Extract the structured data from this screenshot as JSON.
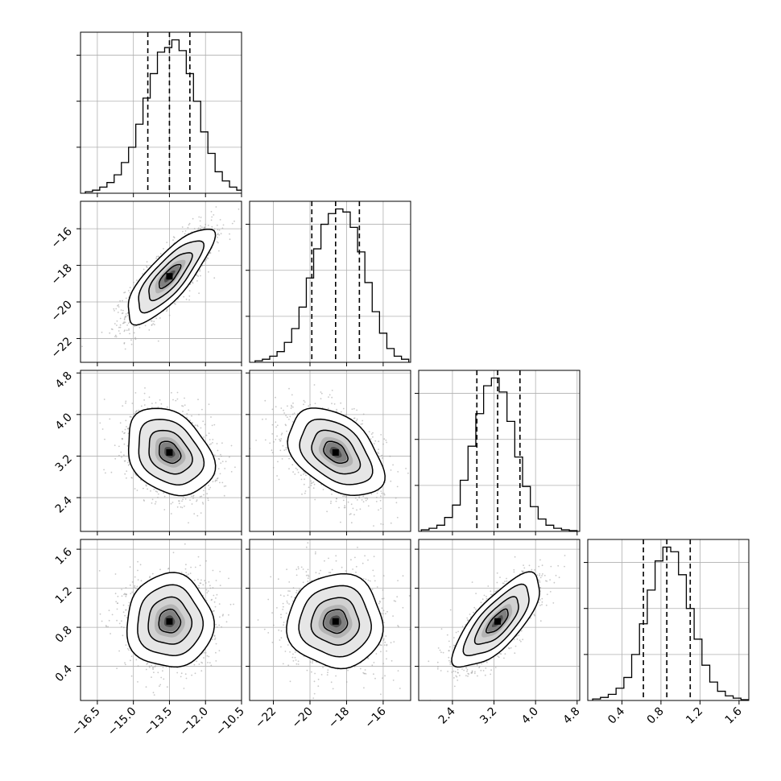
{
  "chart_data": {
    "type": "corner",
    "parameters": [
      {
        "range": [
          -17.2,
          -10.5
        ],
        "ticks": [
          "−16.5",
          "−15.0",
          "−13.5",
          "−12.0",
          "−10.5"
        ],
        "tick_values": [
          -16.5,
          -15.0,
          -13.5,
          -12.0,
          -10.5
        ],
        "quantiles": [
          -14.4,
          -13.5,
          -12.65
        ],
        "histogram": {
          "bin_start": -17.0,
          "bin_width": 0.3,
          "counts": [
            0.01,
            0.02,
            0.04,
            0.07,
            0.12,
            0.2,
            0.3,
            0.45,
            0.62,
            0.78,
            0.92,
            0.95,
            1.0,
            0.93,
            0.78,
            0.6,
            0.4,
            0.26,
            0.14,
            0.08,
            0.04,
            0.02,
            0.01
          ]
        }
      },
      {
        "range": [
          -23.3,
          -14.5
        ],
        "ticks": [
          "−22",
          "−20",
          "−18",
          "−16"
        ],
        "tick_values": [
          -22,
          -20,
          -18,
          -16
        ],
        "quantiles": [
          -19.9,
          -18.6,
          -17.3
        ],
        "histogram": {
          "bin_start": -23.0,
          "bin_width": 0.4,
          "counts": [
            0.01,
            0.02,
            0.04,
            0.07,
            0.13,
            0.22,
            0.36,
            0.55,
            0.74,
            0.9,
            0.97,
            1.0,
            0.98,
            0.88,
            0.72,
            0.52,
            0.33,
            0.19,
            0.09,
            0.04,
            0.02
          ]
        }
      },
      {
        "range": [
          1.75,
          4.85
        ],
        "ticks": [
          "2.4",
          "3.2",
          "4.0",
          "4.8"
        ],
        "tick_values": [
          2.4,
          3.2,
          4.0,
          4.8
        ],
        "quantiles": [
          2.87,
          3.27,
          3.7
        ],
        "histogram": {
          "bin_start": 1.8,
          "bin_width": 0.15,
          "counts": [
            0.01,
            0.02,
            0.04,
            0.09,
            0.17,
            0.33,
            0.55,
            0.76,
            0.94,
            0.99,
            0.9,
            0.71,
            0.48,
            0.29,
            0.16,
            0.08,
            0.04,
            0.02,
            0.01,
            0.005
          ]
        }
      },
      {
        "range": [
          0.05,
          1.7
        ],
        "ticks": [
          "0.4",
          "0.8",
          "1.2",
          "1.6"
        ],
        "tick_values": [
          0.4,
          0.8,
          1.2,
          1.6
        ],
        "quantiles": [
          0.62,
          0.86,
          1.1
        ],
        "histogram": {
          "bin_start": 0.1,
          "bin_width": 0.08,
          "counts": [
            0.01,
            0.02,
            0.04,
            0.08,
            0.15,
            0.3,
            0.5,
            0.72,
            0.91,
            1.0,
            0.97,
            0.82,
            0.6,
            0.4,
            0.23,
            0.12,
            0.06,
            0.03,
            0.015,
            0.005
          ]
        }
      }
    ],
    "pairs": [
      {
        "x": 0,
        "y": 1,
        "mean": [
          -13.5,
          -18.6
        ],
        "sd": [
          0.9,
          1.3
        ],
        "corr": 0.8
      },
      {
        "x": 0,
        "y": 2,
        "mean": [
          -13.5,
          3.27
        ],
        "sd": [
          0.9,
          0.42
        ],
        "corr": -0.28
      },
      {
        "x": 1,
        "y": 2,
        "mean": [
          -18.6,
          3.27
        ],
        "sd": [
          1.3,
          0.42
        ],
        "corr": -0.42
      },
      {
        "x": 0,
        "y": 3,
        "mean": [
          -13.5,
          0.86
        ],
        "sd": [
          0.9,
          0.24
        ],
        "corr": 0.0
      },
      {
        "x": 1,
        "y": 3,
        "mean": [
          -18.6,
          0.86
        ],
        "sd": [
          1.3,
          0.24
        ],
        "corr": 0.0
      },
      {
        "x": 2,
        "y": 3,
        "mean": [
          3.27,
          0.86
        ],
        "sd": [
          0.42,
          0.24
        ],
        "corr": 0.75
      }
    ],
    "contour_levels_sigma": [
      0.5,
      1.0,
      1.5,
      2.0
    ],
    "grid": true,
    "quantile_style": "dashed",
    "colors": {
      "line": "#000000",
      "grid": "#b0b0b0",
      "points": "#9a9a9a",
      "density": "#000000"
    }
  }
}
